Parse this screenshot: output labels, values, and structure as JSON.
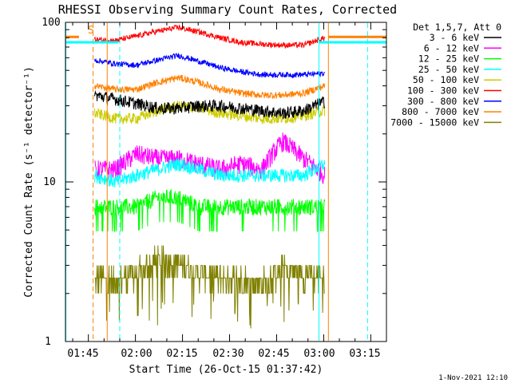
{
  "chart_data": {
    "type": "line",
    "title": "RHESSI Observing Summary Count Rates, Corrected",
    "xlabel": "Start Time (26-Oct-15 01:37:42)",
    "ylabel": "Corrected Count Rate (s⁻¹ detector⁻¹)",
    "y_scale": "log",
    "ylim": [
      1,
      100
    ],
    "y_ticks": [
      "1",
      "10",
      "100"
    ],
    "x_ticks": [
      "01:45",
      "02:00",
      "02:15",
      "02:30",
      "02:45",
      "03:00",
      "03:15"
    ],
    "x_range": [
      "01:37:42",
      "03:20:00"
    ],
    "data_range": [
      "01:47:00",
      "03:00:20"
    ],
    "legend_title": "Det 1,5,7, Att 0",
    "legend_position": "right",
    "attenuator_label": "S",
    "footer": "1-Nov-2021 12:10",
    "series": [
      {
        "name": "3 - 6 keV",
        "color": "#000000",
        "values": [
          35,
          33,
          31,
          29,
          29,
          30,
          30,
          29,
          28,
          27,
          28,
          32
        ]
      },
      {
        "name": "6 - 12 keV",
        "color": "#ff00ff",
        "values": [
          12,
          12,
          15,
          14,
          14,
          13,
          12,
          13,
          12,
          18,
          14,
          11
        ]
      },
      {
        "name": "12 - 25 keV",
        "color": "#00ff00",
        "values": [
          7,
          7,
          7,
          8,
          8,
          7,
          7,
          7,
          7,
          7,
          7,
          7
        ]
      },
      {
        "name": "25 - 50 keV",
        "color": "#00ffff",
        "values": [
          11,
          10,
          11,
          12,
          13,
          12,
          11,
          11,
          11,
          11,
          11,
          13
        ]
      },
      {
        "name": "50 - 100 keV",
        "color": "#cccc00",
        "values": [
          27,
          25,
          25,
          28,
          30,
          29,
          27,
          26,
          25,
          25,
          26,
          28
        ]
      },
      {
        "name": "100 - 300 keV",
        "color": "#ff0000",
        "values": [
          78,
          77,
          82,
          88,
          93,
          87,
          80,
          75,
          73,
          72,
          72,
          80
        ]
      },
      {
        "name": "300 - 800 keV",
        "color": "#0000ff",
        "values": [
          58,
          55,
          54,
          58,
          62,
          57,
          52,
          49,
          47,
          47,
          47,
          48
        ]
      },
      {
        "name": "800 - 7000 keV",
        "color": "#ff8000",
        "values": [
          40,
          38,
          38,
          42,
          45,
          42,
          38,
          36,
          35,
          35,
          36,
          40
        ]
      },
      {
        "name": "7000 - 15000 keV",
        "color": "#808000",
        "values": [
          2.6,
          2.5,
          2.8,
          3.5,
          3.3,
          2.8,
          2.6,
          2.5,
          2.4,
          3.0,
          2.8,
          2.6
        ]
      }
    ]
  }
}
